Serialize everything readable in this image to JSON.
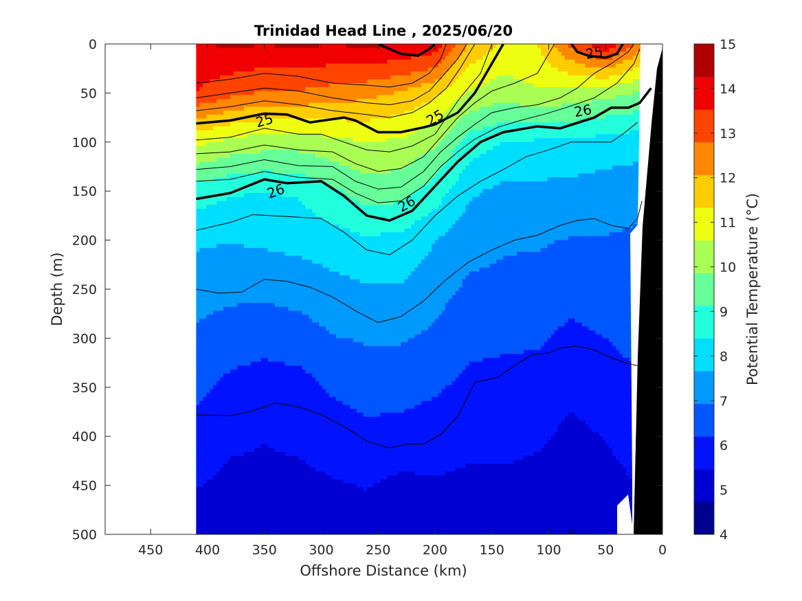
{
  "chart_data": {
    "type": "heatmap",
    "title": "Trinidad Head Line , 2025/06/20",
    "xlabel": "Offshore Distance (km)",
    "ylabel": "Depth (m)",
    "xlim": [
      490,
      0
    ],
    "ylim": [
      0,
      500
    ],
    "x_ticks": [
      450,
      400,
      350,
      300,
      250,
      200,
      150,
      100,
      50,
      0
    ],
    "y_ticks": [
      0,
      50,
      100,
      150,
      200,
      250,
      300,
      350,
      400,
      450,
      500
    ],
    "x_reversed": true,
    "y_reversed": true,
    "colorbar": {
      "label": "Potential Temperature (°C)",
      "min": 4,
      "max": 15,
      "ticks": [
        4,
        5,
        6,
        7,
        8,
        9,
        10,
        11,
        12,
        13,
        14,
        15
      ],
      "colors": [
        "#00008f",
        "#0000d2",
        "#0012ff",
        "#0056ff",
        "#009aff",
        "#00deff",
        "#22ffdd",
        "#66ff99",
        "#aaff55",
        "#eeff11",
        "#ffcc00",
        "#ff8800",
        "#ff4400",
        "#f00000",
        "#b00000"
      ]
    },
    "data_extent_km": [
      410,
      0
    ],
    "temperature_rows": [
      {
        "depth": 0,
        "x": [
          410,
          380,
          350,
          320,
          290,
          260,
          230,
          200,
          170,
          140,
          110,
          80,
          50,
          20
        ],
        "t": [
          14.2,
          14.4,
          14.3,
          14.4,
          14.3,
          14.4,
          14.3,
          14.0,
          12.0,
          11.2,
          11.3,
          13.0,
          14.2,
          12.5
        ]
      },
      {
        "depth": 50,
        "x": [
          410,
          380,
          350,
          320,
          290,
          260,
          230,
          200,
          170,
          140,
          110,
          80,
          50,
          20
        ],
        "t": [
          13.5,
          13.0,
          12.7,
          12.7,
          12.5,
          12.3,
          12.0,
          11.5,
          10.5,
          10.2,
          10.5,
          10.3,
          10.1,
          9.8
        ]
      },
      {
        "depth": 100,
        "x": [
          410,
          380,
          350,
          320,
          290,
          260,
          230,
          200,
          170,
          140,
          110,
          80,
          50,
          20
        ],
        "t": [
          10.8,
          10.4,
          10.2,
          10.2,
          10.4,
          10.6,
          10.5,
          10.0,
          8.8,
          8.4,
          8.3,
          8.3,
          8.1,
          8.0
        ]
      },
      {
        "depth": 150,
        "x": [
          410,
          380,
          350,
          320,
          290,
          260,
          230,
          200,
          170,
          140,
          110,
          80,
          50,
          20
        ],
        "t": [
          8.8,
          8.5,
          8.4,
          8.5,
          9.0,
          9.5,
          9.4,
          8.8,
          7.8,
          7.5,
          7.5,
          7.4,
          7.3,
          7.2
        ]
      },
      {
        "depth": 200,
        "x": [
          410,
          380,
          350,
          320,
          290,
          260,
          230,
          200,
          170,
          140,
          110,
          80,
          50,
          20
        ],
        "t": [
          7.8,
          7.7,
          7.8,
          7.9,
          8.1,
          8.3,
          8.2,
          7.7,
          7.2,
          7.0,
          7.0,
          6.9,
          6.9,
          6.8
        ]
      },
      {
        "depth": 250,
        "x": [
          410,
          380,
          350,
          320,
          290,
          260,
          230,
          200,
          170,
          140,
          110,
          80,
          50,
          20
        ],
        "t": [
          7.2,
          7.1,
          7.1,
          7.2,
          7.4,
          7.6,
          7.6,
          7.2,
          6.8,
          6.8,
          6.7,
          6.5,
          6.8,
          6.7
        ]
      },
      {
        "depth": 300,
        "x": [
          410,
          380,
          350,
          320,
          290,
          260,
          230,
          200,
          170,
          140,
          110,
          80,
          50,
          20
        ],
        "t": [
          6.8,
          6.6,
          6.5,
          6.6,
          6.9,
          7.0,
          7.0,
          6.8,
          6.4,
          6.3,
          6.3,
          6.0,
          6.2,
          6.4
        ]
      },
      {
        "depth": 350,
        "x": [
          410,
          380,
          350,
          320,
          290,
          260,
          230,
          200,
          170,
          140,
          110,
          80,
          50,
          20
        ],
        "t": [
          6.4,
          6.0,
          5.8,
          5.9,
          6.3,
          6.5,
          6.5,
          6.3,
          6.0,
          6.0,
          5.9,
          5.6,
          5.9,
          6.1
        ]
      },
      {
        "depth": 400,
        "x": [
          410,
          380,
          350,
          320,
          290,
          260,
          230,
          200,
          170,
          140,
          110,
          80,
          50,
          20
        ],
        "t": [
          5.9,
          5.6,
          5.5,
          5.6,
          5.8,
          6.0,
          5.9,
          5.8,
          5.7,
          5.7,
          5.6,
          5.3,
          5.5,
          5.8
        ]
      },
      {
        "depth": 450,
        "x": [
          410,
          380,
          350,
          320,
          290,
          260,
          230,
          200,
          170,
          140,
          110,
          80,
          50,
          20
        ],
        "t": [
          5.5,
          5.3,
          5.3,
          5.3,
          5.4,
          5.5,
          5.3,
          5.4,
          5.3,
          5.3,
          5.2,
          5.0,
          5.2,
          5.5
        ]
      },
      {
        "depth": 500,
        "x": [
          410,
          380,
          350,
          320,
          290,
          260,
          230,
          200,
          170,
          140,
          110,
          80,
          50,
          20
        ],
        "t": [
          5.2,
          5.1,
          5.0,
          5.1,
          5.1,
          5.2,
          5.0,
          5.1,
          5.1,
          5.0,
          5.0,
          4.7,
          5.0,
          5.3
        ]
      }
    ],
    "density_contours": [
      {
        "label": "25",
        "bold": true,
        "points": [
          [
            410,
            81
          ],
          [
            380,
            78
          ],
          [
            350,
            71
          ],
          [
            330,
            72
          ],
          [
            310,
            80
          ],
          [
            280,
            75
          ],
          [
            270,
            78
          ],
          [
            250,
            90
          ],
          [
            230,
            90
          ],
          [
            210,
            85
          ],
          [
            200,
            82
          ],
          [
            180,
            70
          ],
          [
            165,
            50
          ],
          [
            155,
            30
          ],
          [
            145,
            10
          ],
          [
            140,
            0
          ]
        ]
      },
      {
        "label": "26",
        "bold": true,
        "points": [
          [
            410,
            158
          ],
          [
            380,
            152
          ],
          [
            350,
            138
          ],
          [
            330,
            142
          ],
          [
            300,
            140
          ],
          [
            280,
            155
          ],
          [
            260,
            175
          ],
          [
            240,
            180
          ],
          [
            220,
            170
          ],
          [
            200,
            145
          ],
          [
            180,
            120
          ],
          [
            160,
            100
          ],
          [
            140,
            90
          ],
          [
            110,
            84
          ],
          [
            90,
            86
          ],
          [
            60,
            75
          ],
          [
            45,
            65
          ],
          [
            30,
            65
          ],
          [
            20,
            60
          ],
          [
            10,
            45
          ]
        ]
      },
      {
        "label": "25",
        "bold": true,
        "points": [
          [
            80,
            0
          ],
          [
            75,
            8
          ],
          [
            65,
            12
          ],
          [
            50,
            14
          ],
          [
            40,
            10
          ],
          [
            35,
            0
          ]
        ]
      },
      {
        "label": "",
        "bold": true,
        "points": [
          [
            250,
            0
          ],
          [
            230,
            10
          ],
          [
            215,
            12
          ],
          [
            205,
            5
          ],
          [
            200,
            0
          ]
        ]
      }
    ],
    "thin_contours": [
      [
        [
          410,
          40
        ],
        [
          380,
          36
        ],
        [
          350,
          30
        ],
        [
          320,
          33
        ],
        [
          290,
          40
        ],
        [
          260,
          42
        ],
        [
          240,
          44
        ],
        [
          220,
          40
        ],
        [
          205,
          30
        ],
        [
          195,
          15
        ],
        [
          190,
          0
        ]
      ],
      [
        [
          410,
          55
        ],
        [
          380,
          50
        ],
        [
          350,
          45
        ],
        [
          320,
          48
        ],
        [
          290,
          55
        ],
        [
          260,
          60
        ],
        [
          240,
          62
        ],
        [
          220,
          58
        ],
        [
          205,
          48
        ],
        [
          195,
          35
        ],
        [
          180,
          15
        ],
        [
          172,
          0
        ]
      ],
      [
        [
          410,
          68
        ],
        [
          380,
          64
        ],
        [
          350,
          58
        ],
        [
          320,
          62
        ],
        [
          290,
          68
        ],
        [
          260,
          72
        ],
        [
          240,
          75
        ],
        [
          220,
          70
        ],
        [
          205,
          60
        ],
        [
          190,
          45
        ],
        [
          178,
          25
        ],
        [
          165,
          0
        ]
      ],
      [
        [
          410,
          98
        ],
        [
          380,
          95
        ],
        [
          350,
          86
        ],
        [
          320,
          92
        ],
        [
          300,
          92
        ],
        [
          280,
          100
        ],
        [
          260,
          108
        ],
        [
          240,
          110
        ],
        [
          220,
          104
        ],
        [
          200,
          92
        ],
        [
          190,
          75
        ],
        [
          178,
          55
        ],
        [
          160,
          30
        ],
        [
          150,
          0
        ]
      ],
      [
        [
          410,
          112
        ],
        [
          380,
          110
        ],
        [
          350,
          103
        ],
        [
          320,
          108
        ],
        [
          290,
          110
        ],
        [
          270,
          122
        ],
        [
          250,
          130
        ],
        [
          230,
          127
        ],
        [
          210,
          115
        ],
        [
          195,
          95
        ],
        [
          180,
          75
        ],
        [
          165,
          60
        ],
        [
          150,
          48
        ],
        [
          130,
          40
        ],
        [
          110,
          30
        ],
        [
          95,
          0
        ]
      ],
      [
        [
          410,
          128
        ],
        [
          380,
          125
        ],
        [
          350,
          118
        ],
        [
          320,
          124
        ],
        [
          290,
          125
        ],
        [
          270,
          140
        ],
        [
          250,
          148
        ],
        [
          230,
          146
        ],
        [
          210,
          130
        ],
        [
          195,
          110
        ],
        [
          180,
          95
        ],
        [
          165,
          82
        ],
        [
          150,
          70
        ],
        [
          130,
          65
        ],
        [
          110,
          62
        ],
        [
          90,
          55
        ],
        [
          75,
          45
        ],
        [
          60,
          30
        ],
        [
          45,
          20
        ],
        [
          30,
          8
        ],
        [
          25,
          0
        ]
      ],
      [
        [
          410,
          140
        ],
        [
          380,
          138
        ],
        [
          350,
          130
        ],
        [
          320,
          136
        ],
        [
          290,
          138
        ],
        [
          270,
          152
        ],
        [
          250,
          162
        ],
        [
          230,
          160
        ],
        [
          210,
          145
        ],
        [
          195,
          125
        ],
        [
          180,
          110
        ],
        [
          165,
          97
        ],
        [
          145,
          85
        ],
        [
          125,
          78
        ],
        [
          105,
          72
        ],
        [
          85,
          65
        ],
        [
          60,
          55
        ],
        [
          40,
          40
        ],
        [
          25,
          20
        ],
        [
          20,
          5
        ]
      ],
      [
        [
          410,
          190
        ],
        [
          380,
          182
        ],
        [
          360,
          174
        ],
        [
          330,
          176
        ],
        [
          300,
          178
        ],
        [
          280,
          192
        ],
        [
          260,
          210
        ],
        [
          240,
          215
        ],
        [
          220,
          200
        ],
        [
          200,
          175
        ],
        [
          180,
          155
        ],
        [
          160,
          140
        ],
        [
          140,
          128
        ],
        [
          120,
          115
        ],
        [
          100,
          108
        ],
        [
          80,
          100
        ],
        [
          60,
          100
        ],
        [
          45,
          100
        ],
        [
          35,
          92
        ],
        [
          22,
          80
        ]
      ],
      [
        [
          410,
          250
        ],
        [
          390,
          254
        ],
        [
          370,
          253
        ],
        [
          350,
          240
        ],
        [
          330,
          242
        ],
        [
          310,
          248
        ],
        [
          290,
          258
        ],
        [
          270,
          272
        ],
        [
          250,
          284
        ],
        [
          230,
          278
        ],
        [
          210,
          262
        ],
        [
          190,
          240
        ],
        [
          170,
          222
        ],
        [
          150,
          210
        ],
        [
          130,
          200
        ],
        [
          110,
          195
        ],
        [
          90,
          185
        ],
        [
          75,
          180
        ],
        [
          60,
          178
        ],
        [
          45,
          185
        ],
        [
          30,
          188
        ],
        [
          22,
          178
        ],
        [
          18,
          160
        ]
      ],
      [
        [
          410,
          378
        ],
        [
          380,
          379
        ],
        [
          360,
          374
        ],
        [
          340,
          366
        ],
        [
          320,
          370
        ],
        [
          300,
          378
        ],
        [
          280,
          390
        ],
        [
          260,
          405
        ],
        [
          240,
          412
        ],
        [
          225,
          408
        ],
        [
          210,
          408
        ],
        [
          195,
          398
        ],
        [
          180,
          380
        ],
        [
          165,
          345
        ],
        [
          145,
          340
        ],
        [
          130,
          328
        ],
        [
          115,
          317
        ],
        [
          100,
          315
        ],
        [
          90,
          310
        ],
        [
          75,
          308
        ],
        [
          60,
          312
        ],
        [
          45,
          320
        ],
        [
          30,
          326
        ],
        [
          22,
          328
        ]
      ]
    ],
    "contour_labels": [
      {
        "text": "25",
        "x": 350,
        "y": 78,
        "angle": -15
      },
      {
        "text": "25",
        "x": 200,
        "y": 75,
        "angle": -30
      },
      {
        "text": "25",
        "x": 60,
        "y": 9,
        "angle": -10
      },
      {
        "text": "26",
        "x": 340,
        "y": 150,
        "angle": -20
      },
      {
        "text": "26",
        "x": 225,
        "y": 163,
        "angle": -30
      },
      {
        "text": "26",
        "x": 70,
        "y": 68,
        "angle": -10
      }
    ]
  }
}
